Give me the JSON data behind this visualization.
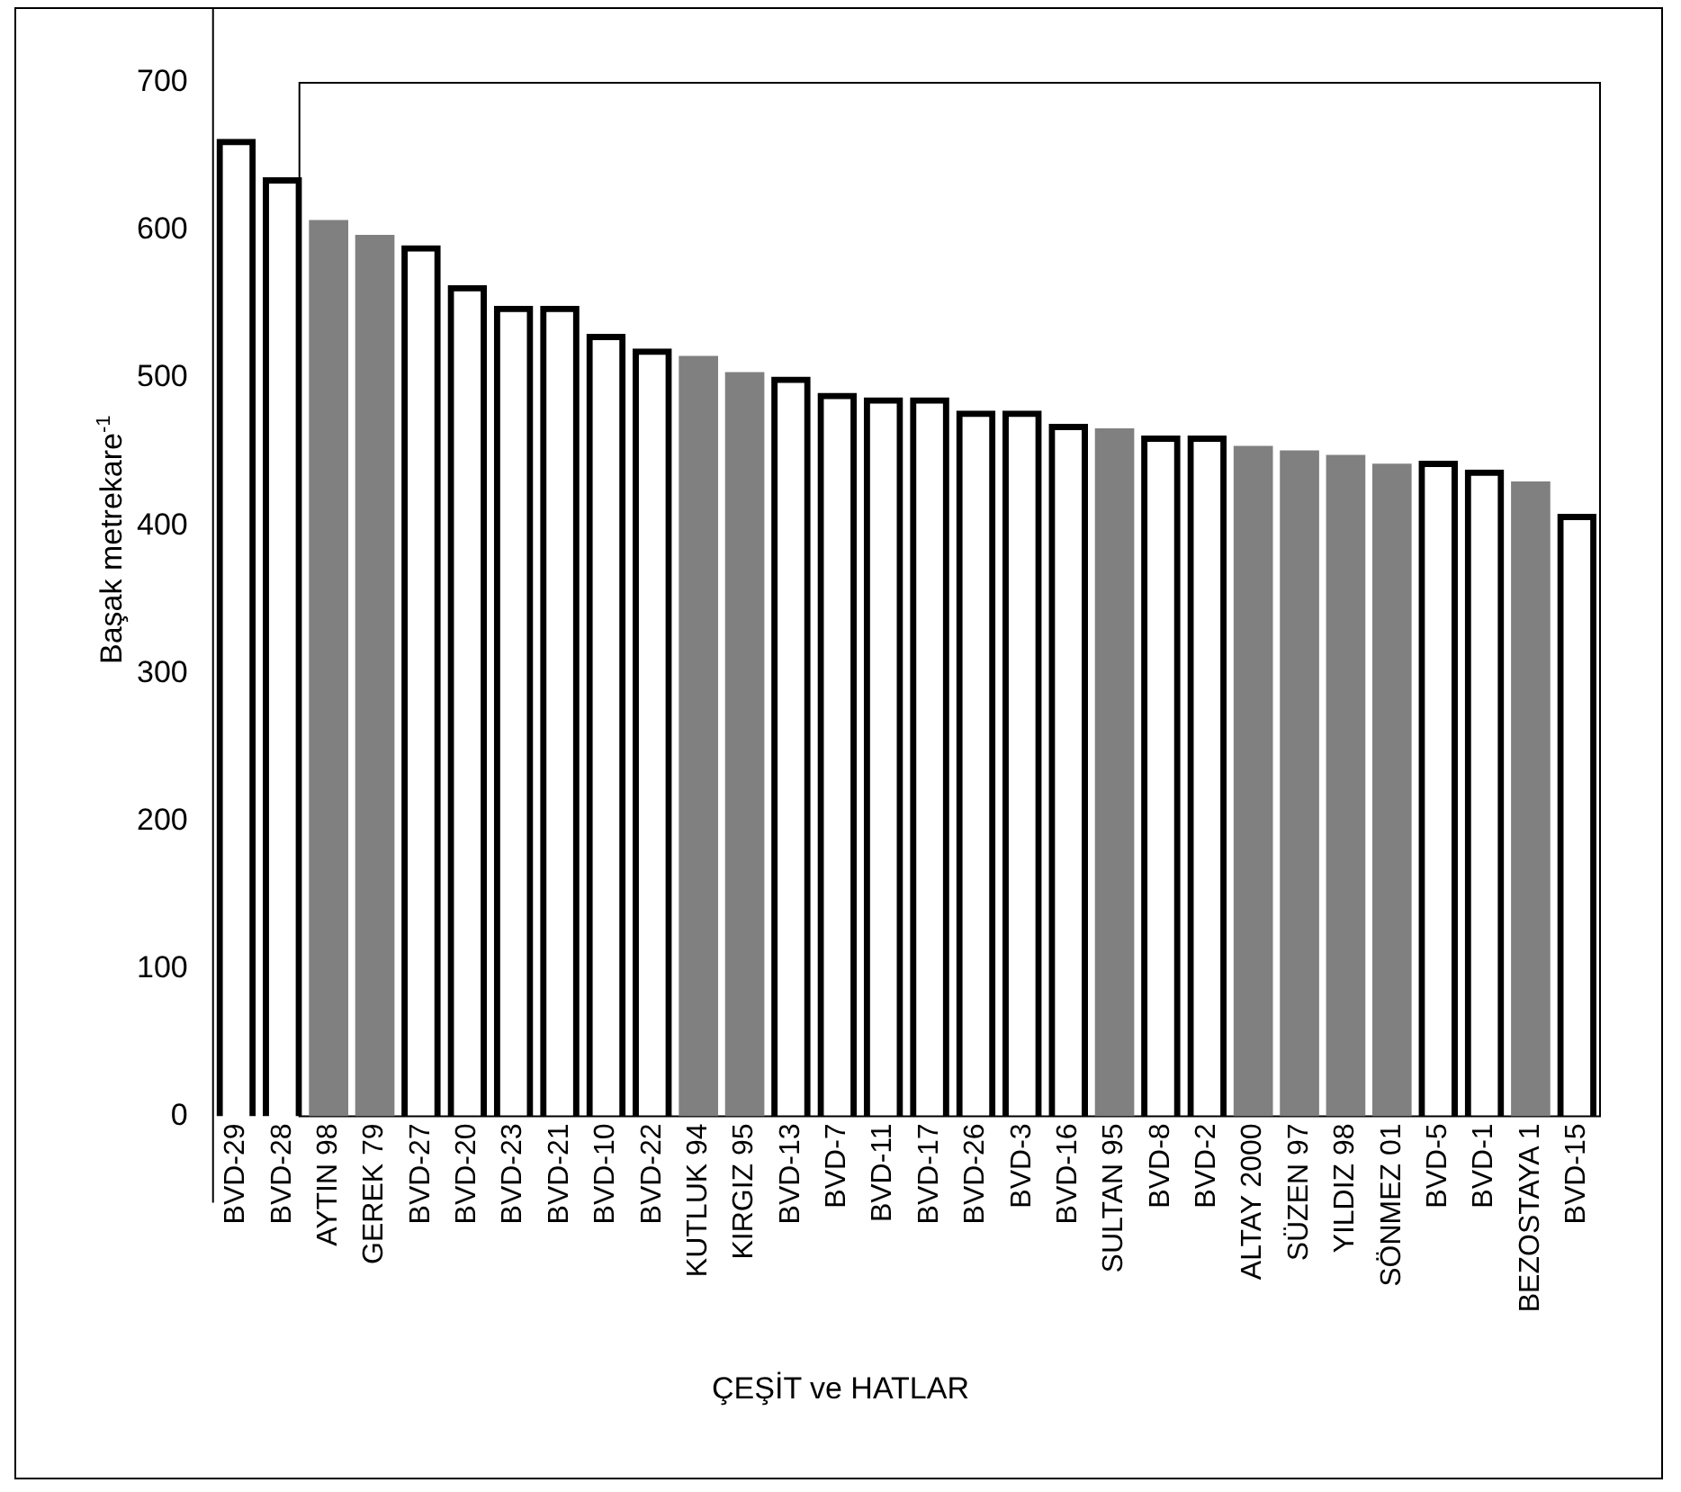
{
  "chart_data": {
    "type": "bar",
    "xlabel": "ÇEŞİT ve HATLAR",
    "ylabel": "Başak  metrekare$^{-1}$",
    "categories": [
      "BVD-29",
      "BVD-28",
      "AYTIN 98",
      "GEREK 79",
      "BVD-27",
      "BVD-20",
      "BVD-23",
      "BVD-21",
      "BVD-10",
      "BVD-22",
      "KUTLUK 94",
      "KIRGIZ 95",
      "BVD-13",
      "BVD-7",
      "BVD-11",
      "BVD-17",
      "BVD-26",
      "BVD-3",
      "BVD-16",
      "SULTAN 95",
      "BVD-8",
      "BVD-2",
      "ALTAY 2000",
      "SÜZEN 97",
      "YILDIZ 98",
      "SÖNMEZ 01",
      "BVD-5",
      "BVD-1",
      "BEZOSTAYA 1",
      "BVD-15"
    ],
    "values": [
      662,
      636,
      607,
      597,
      590,
      563,
      549,
      549,
      530,
      520,
      515,
      504,
      501,
      490,
      487,
      487,
      478,
      478,
      469,
      466,
      461,
      461,
      454,
      451,
      448,
      442,
      444,
      438,
      430,
      408
    ],
    "colors": [
      "#000000",
      "#000000",
      "#808080",
      "#808080",
      "#000000",
      "#000000",
      "#000000",
      "#000000",
      "#000000",
      "#000000",
      "#808080",
      "#808080",
      "#000000",
      "#000000",
      "#000000",
      "#000000",
      "#000000",
      "#000000",
      "#000000",
      "#808080",
      "#000000",
      "#000000",
      "#808080",
      "#808080",
      "#808080",
      "#808080",
      "#000000",
      "#000000",
      "#808080",
      "#000000"
    ],
    "ylim": [
      0,
      700
    ],
    "yticks": [
      0,
      100,
      200,
      300,
      400,
      500,
      600,
      700
    ],
    "grid": false,
    "legend": false
  }
}
